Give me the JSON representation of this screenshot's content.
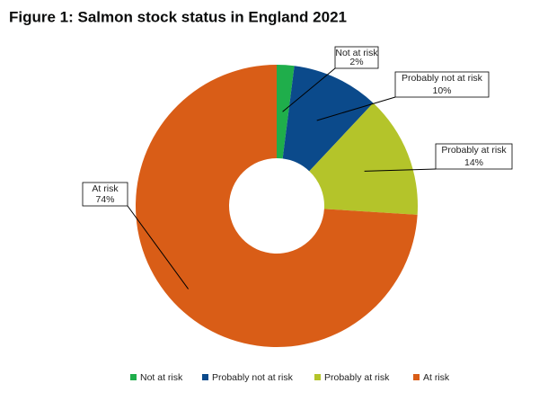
{
  "chart_data": {
    "type": "donut",
    "title": "Figure 1: Salmon stock status in England 2021",
    "categories": [
      "Not at risk",
      "Probably not at risk",
      "Probably at risk",
      "At risk"
    ],
    "values": [
      2,
      10,
      14,
      74
    ],
    "value_labels": [
      "2%",
      "10%",
      "14%",
      "74%"
    ],
    "colors": [
      "#1fae4b",
      "#0b4a8b",
      "#b4c42a",
      "#d95d17"
    ],
    "legend": "bottom"
  }
}
